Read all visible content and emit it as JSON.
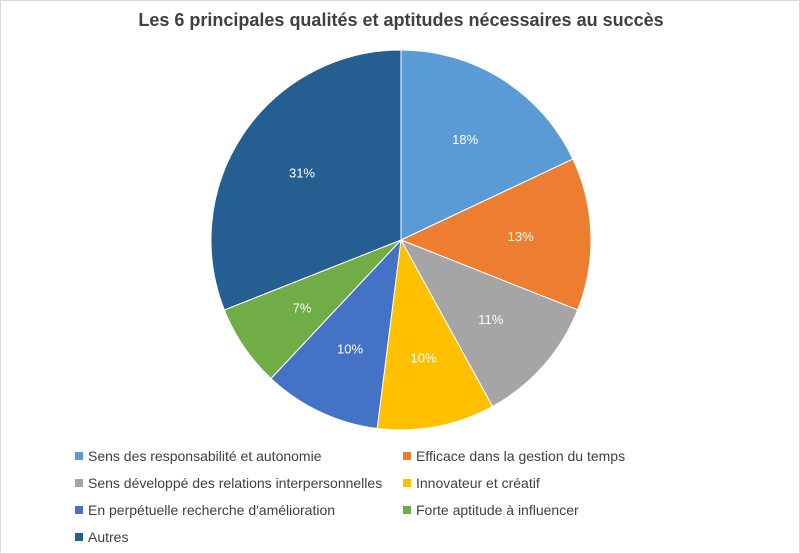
{
  "chart_data": {
    "type": "pie",
    "title": "Les 6 principales qualités et aptitudes nécessaires au succès",
    "slices": [
      {
        "label": "Sens des responsabilité et autonomie",
        "value": 18,
        "display": "18%",
        "color": "#5b9bd5"
      },
      {
        "label": "Efficace dans la gestion du temps",
        "value": 13,
        "display": "13%",
        "color": "#ed7d31"
      },
      {
        "label": "Sens développé des relations interpersonnelles",
        "value": 11,
        "display": "11%",
        "color": "#a5a5a5"
      },
      {
        "label": "Innovateur et créatif",
        "value": 10,
        "display": "10%",
        "color": "#ffc000"
      },
      {
        "label": "En perpétuelle recherche d'amélioration",
        "value": 10,
        "display": "10%",
        "color": "#4472c4"
      },
      {
        "label": "Forte aptitude à influencer",
        "value": 7,
        "display": "7%",
        "color": "#70ad47"
      },
      {
        "label": "Autres",
        "value": 31,
        "display": "31%",
        "color": "#255e91"
      }
    ],
    "legend_position": "bottom"
  }
}
